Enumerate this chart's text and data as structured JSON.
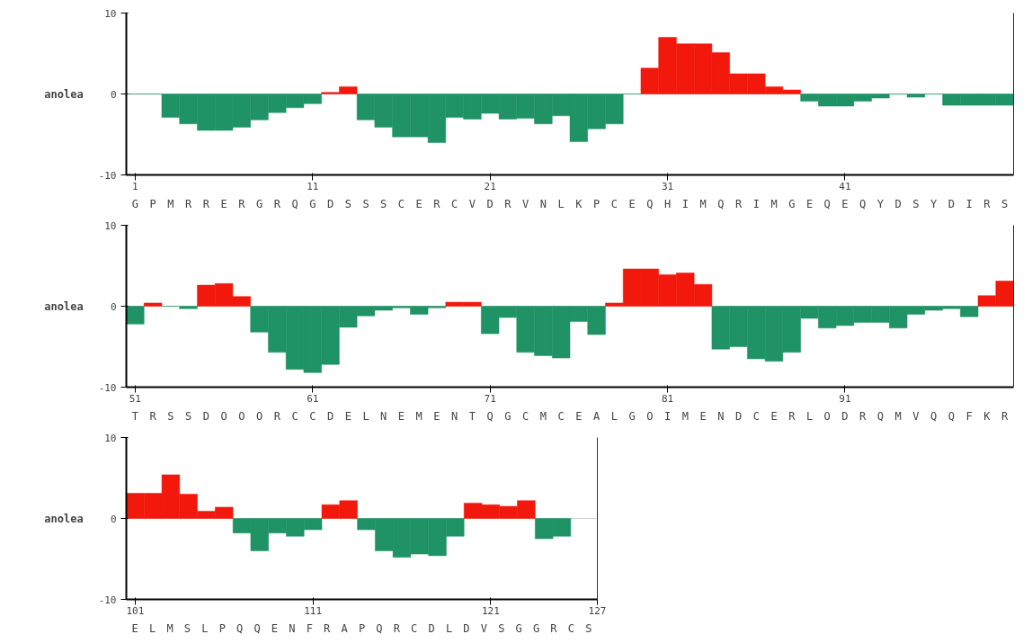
{
  "chart_data": [
    {
      "type": "bar",
      "ylabel": "anolea",
      "grid": "y",
      "x": [
        1,
        2,
        3,
        4,
        5,
        6,
        7,
        8,
        9,
        10,
        11,
        12,
        13,
        14,
        15,
        16,
        17,
        18,
        19,
        20,
        21,
        22,
        23,
        24,
        25,
        26,
        27,
        28,
        29,
        30,
        31,
        32,
        33,
        34,
        35,
        36,
        37,
        38,
        39,
        40,
        41,
        42,
        43,
        44,
        45,
        46,
        47,
        48,
        49,
        50
      ],
      "values": [
        0,
        0,
        -2.9,
        -3.7,
        -4.5,
        -4.5,
        -4.1,
        -3.2,
        -2.3,
        -1.7,
        -1.2,
        0.2,
        0.9,
        -3.2,
        -4.1,
        -5.3,
        -5.3,
        -6,
        -2.9,
        -3.1,
        -2.4,
        -3.1,
        -3,
        -3.7,
        -2.7,
        -5.9,
        -4.3,
        -3.7,
        0,
        3.2,
        7,
        6.2,
        6.2,
        5.1,
        2.5,
        2.5,
        0.9,
        0.5,
        -0.9,
        -1.5,
        -1.5,
        -0.9,
        -0.5,
        0,
        -0.4,
        0,
        -1.4,
        -1.4,
        -1.4,
        -1.4
      ],
      "colors": [
        "#1f9365",
        "#1f9365",
        "#1f9365",
        "#1f9365",
        "#1f9365",
        "#1f9365",
        "#1f9365",
        "#1f9365",
        "#1f9365",
        "#1f9365",
        "#1f9365",
        "#f2180c",
        "#f2180c",
        "#1f9365",
        "#1f9365",
        "#1f9365",
        "#1f9365",
        "#1f9365",
        "#1f9365",
        "#1f9365",
        "#1f9365",
        "#1f9365",
        "#1f9365",
        "#1f9365",
        "#1f9365",
        "#1f9365",
        "#1f9365",
        "#1f9365",
        "#1f9365",
        "#f2180c",
        "#f2180c",
        "#f2180c",
        "#f2180c",
        "#f2180c",
        "#f2180c",
        "#f2180c",
        "#f2180c",
        "#f2180c",
        "#1f9365",
        "#1f9365",
        "#1f9365",
        "#1f9365",
        "#1f9365",
        "#1f9365",
        "#1f9365",
        "#1f9365",
        "#1f9365",
        "#1f9365",
        "#1f9365",
        "#1f9365"
      ],
      "xlim": [
        0.5,
        50.5
      ],
      "xticks": [
        1,
        11,
        21,
        31,
        41
      ],
      "ylim": [
        -10,
        10
      ],
      "yticks": [
        -10,
        0,
        10
      ],
      "annotations": [
        "G P M R R E R G R Q G D S S S C E R C V D R V N L K P C E Q H I M Q R I M G E Q E Q Y D S Y D I R S"
      ]
    },
    {
      "type": "bar",
      "ylabel": "anolea",
      "grid": "y",
      "x": [
        51,
        52,
        53,
        54,
        55,
        56,
        57,
        58,
        59,
        60,
        61,
        62,
        63,
        64,
        65,
        66,
        67,
        68,
        69,
        70,
        71,
        72,
        73,
        74,
        75,
        76,
        77,
        78,
        79,
        80,
        81,
        82,
        83,
        84,
        85,
        86,
        87,
        88,
        89,
        90,
        91,
        92,
        93,
        94,
        95,
        96,
        97,
        98,
        99,
        100
      ],
      "values": [
        -2.2,
        0.4,
        0,
        -0.3,
        2.6,
        2.8,
        1.2,
        -3.2,
        -5.7,
        -7.8,
        -8.2,
        -7.2,
        -2.6,
        -1.2,
        -0.5,
        -0.2,
        -1,
        -0.2,
        0.5,
        0.5,
        -3.4,
        -1.4,
        -5.7,
        -6.1,
        -6.4,
        -1.9,
        -3.5,
        0.4,
        4.6,
        4.6,
        3.9,
        4.1,
        2.7,
        -5.3,
        -5,
        -6.5,
        -6.8,
        -5.7,
        -1.5,
        -2.7,
        -2.4,
        -2,
        -2,
        -2.7,
        -1,
        -0.5,
        -0.3,
        -1.3,
        1.3,
        3.1
      ],
      "colors": [
        "#1f9365",
        "#f2180c",
        "#1f9365",
        "#1f9365",
        "#f2180c",
        "#f2180c",
        "#f2180c",
        "#1f9365",
        "#1f9365",
        "#1f9365",
        "#1f9365",
        "#1f9365",
        "#1f9365",
        "#1f9365",
        "#1f9365",
        "#1f9365",
        "#1f9365",
        "#1f9365",
        "#f2180c",
        "#f2180c",
        "#1f9365",
        "#1f9365",
        "#1f9365",
        "#1f9365",
        "#1f9365",
        "#1f9365",
        "#1f9365",
        "#f2180c",
        "#f2180c",
        "#f2180c",
        "#f2180c",
        "#f2180c",
        "#f2180c",
        "#1f9365",
        "#1f9365",
        "#1f9365",
        "#1f9365",
        "#1f9365",
        "#1f9365",
        "#1f9365",
        "#1f9365",
        "#1f9365",
        "#1f9365",
        "#1f9365",
        "#1f9365",
        "#1f9365",
        "#1f9365",
        "#1f9365",
        "#f2180c",
        "#f2180c"
      ],
      "xlim": [
        50.5,
        100.5
      ],
      "xticks": [
        51,
        61,
        71,
        81,
        91
      ],
      "ylim": [
        -10,
        10
      ],
      "yticks": [
        -10,
        0,
        10
      ],
      "annotations": [
        "T R S S D O O O R C C D E L N E M E N T Q G C M C E A L G O I M E N D C E R L O D R Q M V Q Q F K R"
      ]
    },
    {
      "type": "bar",
      "ylabel": "anolea",
      "grid": "y",
      "x": [
        101,
        102,
        103,
        104,
        105,
        106,
        107,
        108,
        109,
        110,
        111,
        112,
        113,
        114,
        115,
        116,
        117,
        118,
        119,
        120,
        121,
        122,
        123,
        124,
        125
      ],
      "values": [
        3.1,
        3.1,
        5.4,
        3,
        0.9,
        1.4,
        -1.8,
        -4,
        -1.8,
        -2.2,
        -1.4,
        1.7,
        2.2,
        -1.4,
        -4,
        -4.8,
        -4.4,
        -4.6,
        -2.2,
        1.9,
        1.7,
        1.5,
        2.2,
        -2.5,
        -2.2
      ],
      "colors": [
        "#f2180c",
        "#f2180c",
        "#f2180c",
        "#f2180c",
        "#f2180c",
        "#f2180c",
        "#1f9365",
        "#1f9365",
        "#1f9365",
        "#1f9365",
        "#1f9365",
        "#f2180c",
        "#f2180c",
        "#1f9365",
        "#1f9365",
        "#1f9365",
        "#1f9365",
        "#1f9365",
        "#1f9365",
        "#f2180c",
        "#f2180c",
        "#f2180c",
        "#f2180c",
        "#1f9365",
        "#1f9365"
      ],
      "xlim": [
        100.5,
        127
      ],
      "xticks": [
        101,
        111,
        121,
        127
      ],
      "ylim": [
        -10,
        10
      ],
      "yticks": [
        -10,
        0,
        10
      ],
      "annotations": [
        "E L M S L P Q Q E N F R A P Q R C D L D V S G G R C S"
      ]
    }
  ]
}
